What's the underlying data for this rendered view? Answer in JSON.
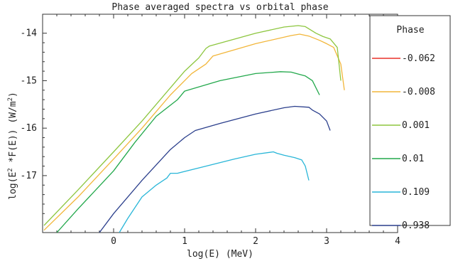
{
  "chart_data": {
    "type": "line",
    "title": "Phase averaged spectra vs orbital phase",
    "xlabel": "log(E) (MeV)",
    "ylabel": "log(E^2 *F(E)) (W/m^2)",
    "xlim": [
      -1.0,
      4.0
    ],
    "ylim": [
      -18.2,
      -13.6
    ],
    "xticks": [
      0,
      1,
      2,
      3,
      4
    ],
    "yticks": [
      -17,
      -16,
      -15,
      -14
    ],
    "xtick_labels": [
      "0",
      "1",
      "2",
      "3",
      "4"
    ],
    "ytick_labels": [
      "-17",
      "-16",
      "-15",
      "-14"
    ],
    "grid": false,
    "legend": {
      "title": "Phase",
      "placement": "right"
    },
    "series": [
      {
        "name": "-0.062",
        "color": "#e8302a",
        "x": [],
        "y": []
      },
      {
        "name": "-0.008",
        "color": "#f2b63a",
        "x": [
          -0.98,
          -0.5,
          0.0,
          0.4,
          0.8,
          1.0,
          1.1,
          1.3,
          1.4,
          2.0,
          2.5,
          2.62,
          2.75,
          2.9,
          3.0,
          3.1,
          3.2,
          3.25
        ],
        "y": [
          -18.15,
          -17.45,
          -16.65,
          -16.0,
          -15.3,
          -15.0,
          -14.85,
          -14.65,
          -14.48,
          -14.22,
          -14.05,
          -14.02,
          -14.06,
          -14.15,
          -14.22,
          -14.3,
          -14.65,
          -15.2
        ]
      },
      {
        "name": "0.001",
        "color": "#8dc63f",
        "x": [
          -0.98,
          -0.5,
          0.0,
          0.4,
          0.8,
          1.0,
          1.2,
          1.3,
          1.35,
          2.0,
          2.4,
          2.6,
          2.7,
          2.85,
          2.95,
          3.05,
          3.15,
          3.2
        ],
        "y": [
          -18.05,
          -17.3,
          -16.5,
          -15.85,
          -15.15,
          -14.8,
          -14.52,
          -14.32,
          -14.27,
          -14.0,
          -13.87,
          -13.84,
          -13.86,
          -14.0,
          -14.07,
          -14.12,
          -14.3,
          -15.0
        ]
      },
      {
        "name": "0.01",
        "color": "#22a84b",
        "x": [
          -0.8,
          -0.5,
          0.0,
          0.3,
          0.6,
          0.9,
          1.0,
          1.5,
          2.0,
          2.35,
          2.5,
          2.6,
          2.7,
          2.8,
          2.9
        ],
        "y": [
          -18.2,
          -17.7,
          -16.9,
          -16.3,
          -15.75,
          -15.4,
          -15.22,
          -15.0,
          -14.85,
          -14.81,
          -14.82,
          -14.86,
          -14.9,
          -15.0,
          -15.3
        ]
      },
      {
        "name": "0.109",
        "color": "#29b6d8",
        "x": [
          0.08,
          0.2,
          0.4,
          0.6,
          0.75,
          0.8,
          0.9,
          1.3,
          1.7,
          2.0,
          2.25,
          2.3,
          2.4,
          2.55,
          2.65,
          2.7,
          2.75
        ],
        "y": [
          -18.2,
          -17.9,
          -17.45,
          -17.2,
          -17.05,
          -16.95,
          -16.95,
          -16.8,
          -16.65,
          -16.55,
          -16.5,
          -16.53,
          -16.57,
          -16.62,
          -16.67,
          -16.8,
          -17.1
        ]
      },
      {
        "name": "0.938",
        "color": "#2b3f8c",
        "x": [
          -0.2,
          0.0,
          0.4,
          0.8,
          1.0,
          1.15,
          1.5,
          2.0,
          2.4,
          2.55,
          2.75,
          2.8,
          2.9,
          3.0,
          3.05
        ],
        "y": [
          -18.2,
          -17.8,
          -17.1,
          -16.45,
          -16.2,
          -16.05,
          -15.9,
          -15.7,
          -15.57,
          -15.54,
          -15.56,
          -15.62,
          -15.7,
          -15.85,
          -16.05
        ]
      }
    ]
  }
}
